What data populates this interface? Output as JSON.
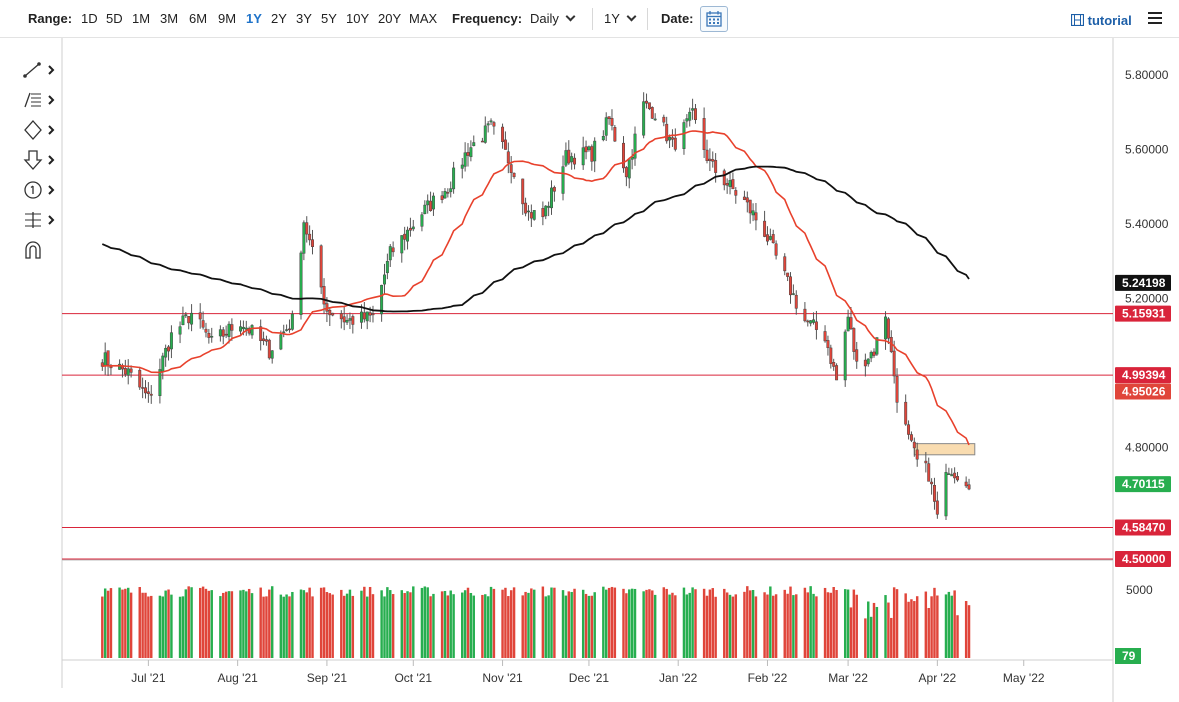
{
  "toolbar": {
    "range_label": "Range:",
    "ranges": [
      "1D",
      "5D",
      "1M",
      "3M",
      "6M",
      "9M",
      "1Y",
      "2Y",
      "3Y",
      "5Y",
      "10Y",
      "20Y",
      "MAX"
    ],
    "active_range": "1Y",
    "frequency_label": "Frequency:",
    "frequency_value": "Daily",
    "period_value": "1Y",
    "date_label": "Date:",
    "tutorial_label": "tutorial"
  },
  "tools": [
    "line-tool-icon",
    "fib-tool-icon",
    "shape-tool-icon",
    "arrow-tool-icon",
    "counter-tool-icon",
    "measure-tool-icon",
    "magnet-icon"
  ],
  "colors": {
    "up": "#27ae4f",
    "down": "#e0453a",
    "ma50": "#e8412c",
    "ma200": "#111111",
    "level": "#d9243a",
    "zone": "#f9dcb0"
  },
  "chart_data": {
    "type": "candlestick",
    "x_ticks": [
      "Jul '21",
      "Aug '21",
      "Sep '21",
      "Oct '21",
      "Nov '21",
      "Dec '21",
      "Jan '22",
      "Feb '22",
      "Mar '22",
      "Apr '22",
      "May '22"
    ],
    "y_ticks": [
      "5.80000",
      "5.60000",
      "5.40000",
      "5.20000",
      "4.80000"
    ],
    "ylim": [
      4.5,
      5.9
    ],
    "anchors": [
      [
        "2021-06-15",
        5.04
      ],
      [
        "2021-06-24",
        5.0
      ],
      [
        "2021-07-01",
        4.93
      ],
      [
        "2021-07-09",
        5.1
      ],
      [
        "2021-07-16",
        5.16
      ],
      [
        "2021-07-23",
        5.08
      ],
      [
        "2021-08-02",
        5.14
      ],
      [
        "2021-08-12",
        5.06
      ],
      [
        "2021-08-20",
        5.14
      ],
      [
        "2021-08-24",
        5.41
      ],
      [
        "2021-09-01",
        5.17
      ],
      [
        "2021-09-08",
        5.14
      ],
      [
        "2021-09-17",
        5.15
      ],
      [
        "2021-09-23",
        5.32
      ],
      [
        "2021-10-04",
        5.43
      ],
      [
        "2021-10-13",
        5.5
      ],
      [
        "2021-10-20",
        5.6
      ],
      [
        "2021-10-28",
        5.66
      ],
      [
        "2021-11-04",
        5.56
      ],
      [
        "2021-11-10",
        5.43
      ],
      [
        "2021-11-15",
        5.42
      ],
      [
        "2021-11-23",
        5.58
      ],
      [
        "2021-12-02",
        5.59
      ],
      [
        "2021-12-08",
        5.68
      ],
      [
        "2021-12-14",
        5.54
      ],
      [
        "2021-12-20",
        5.72
      ],
      [
        "2021-12-24",
        5.7
      ],
      [
        "2021-12-30",
        5.61
      ],
      [
        "2022-01-06",
        5.69
      ],
      [
        "2022-01-12",
        5.56
      ],
      [
        "2022-01-19",
        5.5
      ],
      [
        "2022-01-24",
        5.46
      ],
      [
        "2022-01-31",
        5.38
      ],
      [
        "2022-02-08",
        5.24
      ],
      [
        "2022-02-14",
        5.14
      ],
      [
        "2022-02-21",
        5.1
      ],
      [
        "2022-02-25",
        4.98
      ],
      [
        "2022-03-01",
        5.15
      ],
      [
        "2022-03-04",
        5.02
      ],
      [
        "2022-03-10",
        5.06
      ],
      [
        "2022-03-14",
        5.16
      ],
      [
        "2022-03-18",
        4.94
      ],
      [
        "2022-03-22",
        4.82
      ],
      [
        "2022-03-25",
        4.76
      ],
      [
        "2022-03-29",
        4.73
      ],
      [
        "2022-04-01",
        4.61
      ],
      [
        "2022-04-05",
        4.75
      ],
      [
        "2022-04-08",
        4.73
      ],
      [
        "2022-04-12",
        4.71
      ]
    ],
    "volume_axis_label": "5000",
    "levels": [
      {
        "value": "5.24198",
        "price": 5.24198,
        "color": "#111111",
        "kind": "badge"
      },
      {
        "value": "5.15931",
        "price": 5.15931,
        "color": "#d9243a",
        "kind": "line"
      },
      {
        "value": "4.99394",
        "price": 4.99394,
        "color": "#d9243a",
        "kind": "line"
      },
      {
        "value": "4.95026",
        "price": 4.95026,
        "color": "#e0453a",
        "kind": "badge"
      },
      {
        "value": "4.70115",
        "price": 4.70115,
        "color": "#27ae4f",
        "kind": "badge"
      },
      {
        "value": "4.58470",
        "price": 4.5847,
        "color": "#d9243a",
        "kind": "line"
      },
      {
        "value": "4.50000",
        "price": 4.5,
        "color": "#d9243a",
        "kind": "line"
      }
    ],
    "volume_badge": "79",
    "zone": {
      "from_date": "2022-03-24",
      "to_date": "2022-04-14",
      "low": 4.78,
      "high": 4.81
    }
  }
}
